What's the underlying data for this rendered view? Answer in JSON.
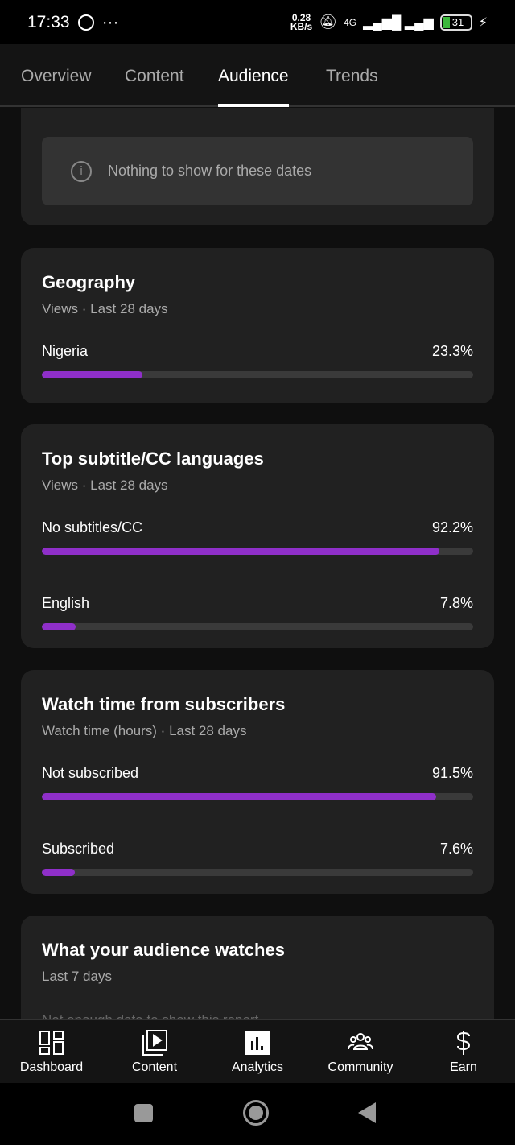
{
  "status_bar": {
    "time": "17:33",
    "speed": "0.28",
    "speed_unit": "KB/s",
    "network": "4G",
    "battery": "31"
  },
  "tabs": [
    {
      "label": "Overview"
    },
    {
      "label": "Content"
    },
    {
      "label": "Audience",
      "active": true
    },
    {
      "label": "Trends"
    }
  ],
  "top_card": {
    "empty_message": "Nothing to show for these dates"
  },
  "geography": {
    "title": "Geography",
    "subtitle": "Views · Last 28 days",
    "rows": [
      {
        "label": "Nigeria",
        "value": "23.3%",
        "percent": 23.3
      }
    ]
  },
  "subtitles": {
    "title": "Top subtitle/CC languages",
    "subtitle": "Views · Last 28 days",
    "rows": [
      {
        "label": "No subtitles/CC",
        "value": "92.2%",
        "percent": 92.2
      },
      {
        "label": "English",
        "value": "7.8%",
        "percent": 7.8
      }
    ]
  },
  "watch_time": {
    "title": "Watch time from subscribers",
    "subtitle": "Watch time (hours) · Last 28 days",
    "rows": [
      {
        "label": "Not subscribed",
        "value": "91.5%",
        "percent": 91.5
      },
      {
        "label": "Subscribed",
        "value": "7.6%",
        "percent": 7.6
      }
    ]
  },
  "audience_watches": {
    "title": "What your audience watches",
    "subtitle": "Last 7 days",
    "message": "Not enough data to show this report"
  },
  "bottom_nav": [
    {
      "label": "Dashboard",
      "icon": "dashboard-icon"
    },
    {
      "label": "Content",
      "icon": "content-icon"
    },
    {
      "label": "Analytics",
      "icon": "analytics-icon",
      "active": true
    },
    {
      "label": "Community",
      "icon": "community-icon"
    },
    {
      "label": "Earn",
      "icon": "dollar-icon"
    }
  ],
  "colors": {
    "accent": "#8f2fc9",
    "card": "#212121",
    "background": "#0f0f0f"
  }
}
